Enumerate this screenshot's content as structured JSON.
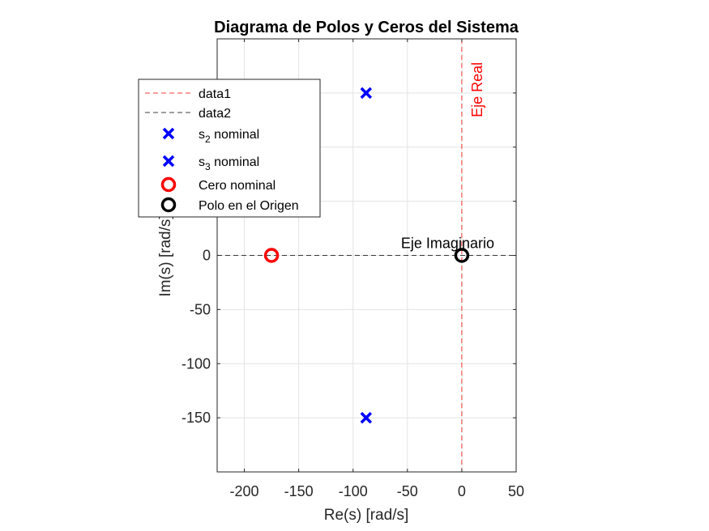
{
  "chart_data": {
    "type": "scatter",
    "title": "Diagrama de Polos y Ceros del Sistema",
    "xlabel": "Re(s) [rad/s]",
    "ylabel": "Im(s) [rad/s]",
    "xlim": [
      -225,
      50
    ],
    "ylim": [
      -200,
      200
    ],
    "x_ticks": [
      -200,
      -150,
      -100,
      -50,
      0,
      50
    ],
    "y_ticks": [
      -150,
      -100,
      -50,
      0
    ],
    "grid": true,
    "legend_position": "upper-left (overlapping axes)",
    "series": [
      {
        "name": "data1",
        "kind": "vline",
        "x": 0,
        "color": "#ff0000",
        "style": "dashed"
      },
      {
        "name": "data2",
        "kind": "hline",
        "y": 0,
        "color": "#000000",
        "style": "dashed"
      },
      {
        "name": "s_2 nominal",
        "name_base": "s",
        "name_sub": "2",
        "name_rest": " nominal",
        "kind": "marker",
        "marker": "x",
        "color": "#0000ff",
        "points": [
          [
            -88,
            150
          ]
        ]
      },
      {
        "name": "s_3 nominal",
        "name_base": "s",
        "name_sub": "3",
        "name_rest": " nominal",
        "kind": "marker",
        "marker": "x",
        "color": "#0000ff",
        "points": [
          [
            -88,
            -150
          ]
        ]
      },
      {
        "name": "Cero nominal",
        "kind": "marker",
        "marker": "o",
        "color": "#ff0000",
        "points": [
          [
            -175,
            0
          ]
        ]
      },
      {
        "name": "Polo en el Origen",
        "kind": "marker",
        "marker": "o",
        "color": "#000000",
        "points": [
          [
            0,
            0
          ]
        ]
      }
    ],
    "annotations": [
      {
        "text": "Eje Real",
        "x": 0,
        "y": 150,
        "color": "#ff0000",
        "rotated": true
      },
      {
        "text": "Eje Imaginario",
        "x": 0,
        "y": 0,
        "color": "#000000",
        "rotated": false
      }
    ]
  }
}
